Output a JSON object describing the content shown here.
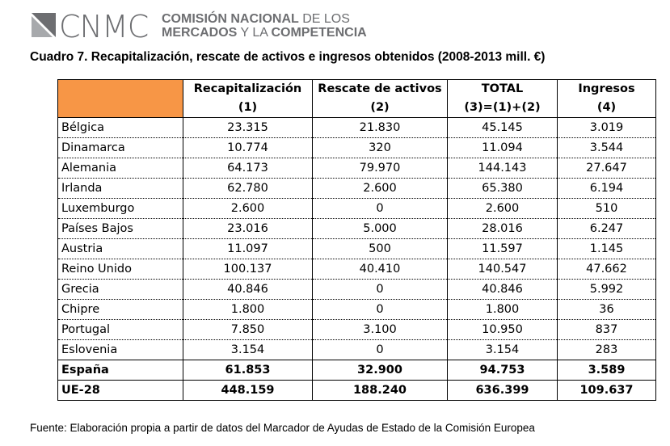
{
  "logo": {
    "acronym": "CNMC",
    "line1_bold": "COMISIÓN NACIONAL",
    "line1_light": " DE LOS",
    "line2_bold": "MERCADOS",
    "line2_light": " Y LA ",
    "line2_bold2": "COMPETENCIA"
  },
  "title": "Cuadro 7. Recapitalización, rescate de activos e ingresos obtenidos (2008-2013 mill. €)",
  "table": {
    "headers": [
      {
        "line1": "",
        "line2": ""
      },
      {
        "line1": "Recapitalización",
        "line2": "(1)"
      },
      {
        "line1": "Rescate de activos",
        "line2": "(2)"
      },
      {
        "line1": "TOTAL",
        "line2": "(3)=(1)+(2)"
      },
      {
        "line1": "Ingresos",
        "line2": "(4)"
      }
    ],
    "rows": [
      [
        "Bélgica",
        "23.315",
        "21.830",
        "45.145",
        "3.019"
      ],
      [
        "Dinamarca",
        "10.774",
        "320",
        "11.094",
        "3.544"
      ],
      [
        "Alemania",
        "64.173",
        "79.970",
        "144.143",
        "27.647"
      ],
      [
        "Irlanda",
        "62.780",
        "2.600",
        "65.380",
        "6.194"
      ],
      [
        "Luxemburgo",
        "2.600",
        "0",
        "2.600",
        "510"
      ],
      [
        "Países Bajos",
        "23.016",
        "5.000",
        "28.016",
        "6.247"
      ],
      [
        "Austria",
        "11.097",
        "500",
        "11.597",
        "1.145"
      ],
      [
        "Reino Unido",
        "100.137",
        "40.410",
        "140.547",
        "47.662"
      ],
      [
        "Grecia",
        "40.846",
        "0",
        "40.846",
        "5.992"
      ],
      [
        "Chipre",
        "1.800",
        "0",
        "1.800",
        "36"
      ],
      [
        "Portugal",
        "7.850",
        "3.100",
        "10.950",
        "837"
      ],
      [
        "Eslovenia",
        "3.154",
        "0",
        "3.154",
        "283"
      ],
      [
        "España",
        "61.853",
        "32.900",
        "94.753",
        "3.589"
      ],
      [
        "UE-28",
        "448.159",
        "188.240",
        "636.399",
        "109.637"
      ]
    ]
  },
  "source": "Fuente: Elaboración propia a partir de datos del Marcador de Ayudas de Estado de la Comisión Europea",
  "colors": {
    "header_accent": "#f79646",
    "logo_gray": "#6d6e71"
  }
}
